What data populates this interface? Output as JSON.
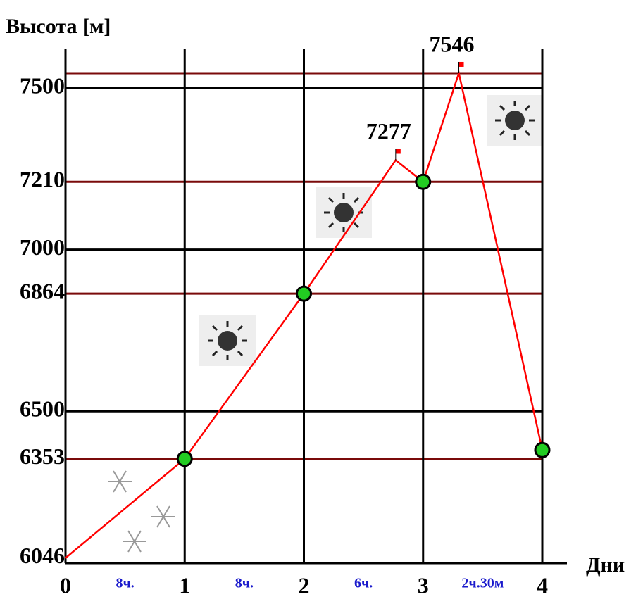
{
  "chart_data": {
    "type": "line",
    "title": "Высота [м]",
    "x_label": "Дни",
    "xlim": [
      0,
      4
    ],
    "xticks": [
      0,
      1,
      2,
      3,
      4
    ],
    "ylim": [
      6030,
      7620
    ],
    "yticks": [
      6046,
      6353,
      6500,
      6864,
      7000,
      7210,
      7500
    ],
    "hlines": [
      {
        "value": 6353,
        "color": "#7a0a0a"
      },
      {
        "value": 6500,
        "color": "#000000"
      },
      {
        "value": 6864,
        "color": "#7a0a0a"
      },
      {
        "value": 7000,
        "color": "#000000"
      },
      {
        "value": 7210,
        "color": "#7a0a0a"
      },
      {
        "value": 7500,
        "color": "#000000"
      },
      {
        "value": 7546,
        "color": "#7a0a0a"
      }
    ],
    "segment_labels": [
      "8ч.",
      "8ч.",
      "6ч.",
      "2ч.30м"
    ],
    "series": [
      {
        "type": "line",
        "color": "#ff0000",
        "x": [
          0,
          1,
          2,
          2.77,
          3,
          3.3,
          4
        ],
        "values": [
          6046,
          6353,
          6864,
          7277,
          7210,
          7546,
          6380
        ],
        "value_labels": [
          null,
          null,
          null,
          "7277",
          null,
          "7546",
          null
        ]
      },
      {
        "type": "scatter",
        "color": "#22cc22",
        "x": [
          1,
          2,
          3,
          4
        ],
        "values": [
          6353,
          6864,
          7210,
          6380
        ]
      }
    ]
  }
}
